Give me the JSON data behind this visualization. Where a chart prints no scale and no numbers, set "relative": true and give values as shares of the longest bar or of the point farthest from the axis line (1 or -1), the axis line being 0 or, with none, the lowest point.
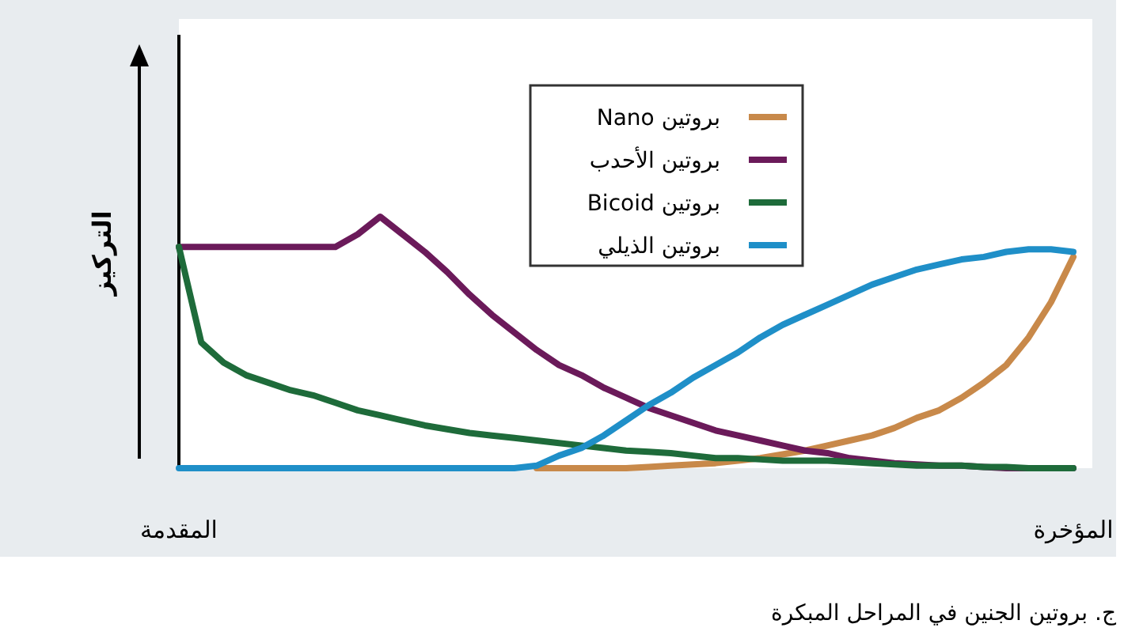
{
  "chart_data": {
    "type": "line",
    "relative": true,
    "ylabel": "التركيز",
    "categories": [
      "المقدمة",
      null,
      null,
      null,
      null,
      null,
      null,
      null,
      null,
      null,
      null,
      null,
      null,
      null,
      null,
      null,
      null,
      null,
      null,
      null,
      null,
      null,
      null,
      null,
      null,
      null,
      null,
      null,
      null,
      null,
      null,
      null,
      null,
      null,
      null,
      null,
      null,
      null,
      null,
      null,
      "المؤخرة"
    ],
    "legend": "top",
    "annotations": [
      "ج. بروتين الجنين في المراحل المبكرة"
    ],
    "series": [
      {
        "name": "بروتين Nano",
        "color": "#c8894a",
        "values": [
          null,
          null,
          null,
          null,
          null,
          null,
          null,
          null,
          null,
          null,
          null,
          null,
          null,
          null,
          null,
          null,
          0,
          0,
          0,
          0,
          0,
          0.005,
          0.01,
          0.015,
          0.02,
          0.03,
          0.04,
          0.055,
          0.07,
          0.09,
          0.11,
          0.13,
          0.16,
          0.2,
          0.23,
          0.28,
          0.34,
          0.41,
          0.52,
          0.66,
          0.84
        ]
      },
      {
        "name": "بروتين الأحدب",
        "color": "#6b1a5a",
        "values": [
          0.88,
          0.88,
          0.88,
          0.88,
          0.88,
          0.88,
          0.88,
          0.88,
          0.93,
          1.0,
          0.93,
          0.86,
          0.78,
          0.69,
          0.61,
          0.54,
          0.47,
          0.41,
          0.37,
          0.32,
          0.28,
          0.24,
          0.21,
          0.18,
          0.15,
          0.13,
          0.11,
          0.09,
          0.07,
          0.06,
          0.04,
          0.03,
          0.02,
          0.015,
          0.01,
          0.01,
          0.005,
          0,
          0,
          0,
          0
        ]
      },
      {
        "name": "بروتين Bicoid",
        "color": "#1e6b3a",
        "values": [
          0.88,
          0.5,
          0.42,
          0.37,
          0.34,
          0.31,
          0.29,
          0.26,
          0.23,
          0.21,
          0.19,
          0.17,
          0.155,
          0.14,
          0.13,
          0.12,
          0.11,
          0.1,
          0.09,
          0.08,
          0.07,
          0.065,
          0.06,
          0.05,
          0.04,
          0.04,
          0.035,
          0.03,
          0.03,
          0.03,
          0.025,
          0.02,
          0.015,
          0.01,
          0.01,
          0.01,
          0.005,
          0.005,
          0,
          0,
          0
        ]
      },
      {
        "name": "بروتين الذيلي",
        "color": "#1f8fc8",
        "values": [
          0,
          0,
          0,
          0,
          0,
          0,
          0,
          0,
          0,
          0,
          0,
          0,
          0,
          0,
          0,
          0,
          0.01,
          0.05,
          0.08,
          0.13,
          0.19,
          0.25,
          0.3,
          0.36,
          0.41,
          0.46,
          0.52,
          0.57,
          0.61,
          0.65,
          0.69,
          0.73,
          0.76,
          0.79,
          0.81,
          0.83,
          0.84,
          0.86,
          0.87,
          0.87,
          0.86
        ]
      }
    ]
  }
}
